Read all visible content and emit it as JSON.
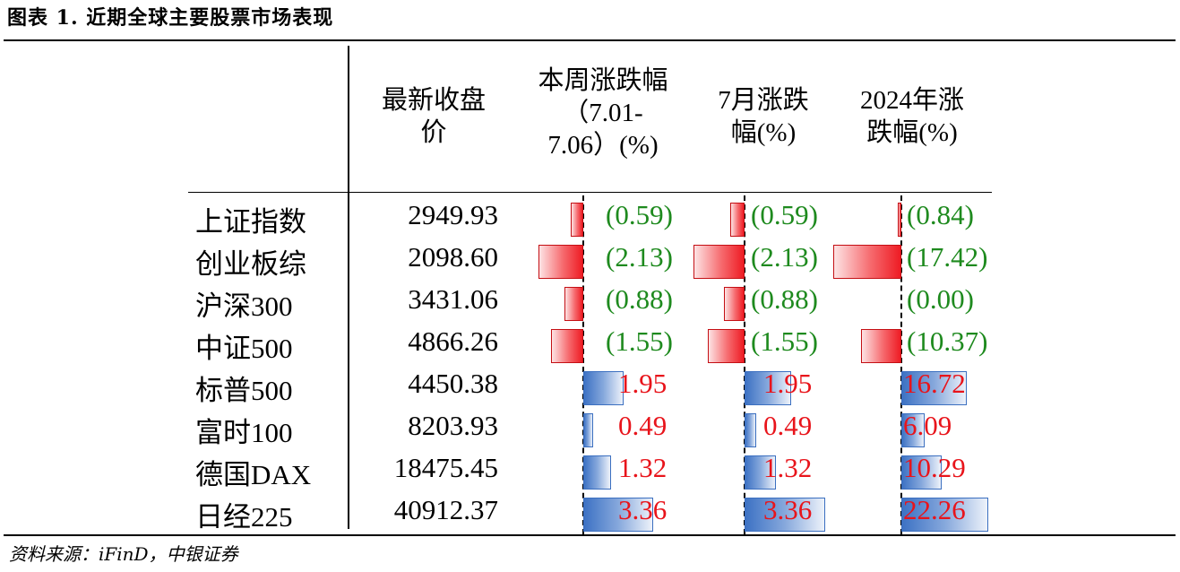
{
  "title": "图表 1. 近期全球主要股票市场表现",
  "headers": {
    "close": "最新收盘\n价",
    "week": "本周涨跌幅\n（7.01-\n7.06）(%)",
    "month": "7月涨跌\n幅(%)",
    "ytd": "2024年涨\n跌幅(%)"
  },
  "rows": [
    {
      "name": "上证指数",
      "close": "2949.93",
      "week": "(0.59)",
      "month": "(0.59)",
      "ytd": "(0.84)"
    },
    {
      "name": "创业板综",
      "close": "2098.60",
      "week": "(2.13)",
      "month": "(2.13)",
      "ytd": "(17.42)"
    },
    {
      "name": "沪深300",
      "close": "3431.06",
      "week": "(0.88)",
      "month": "(0.88)",
      "ytd": "(0.00)"
    },
    {
      "name": "中证500",
      "close": "4866.26",
      "week": "(1.55)",
      "month": "(1.55)",
      "ytd": "(10.37)"
    },
    {
      "name": "标普500",
      "close": "4450.38",
      "week": "1.95",
      "month": "1.95",
      "ytd": "16.72"
    },
    {
      "name": "富时100",
      "close": "8203.93",
      "week": "0.49",
      "month": "0.49",
      "ytd": "6.09"
    },
    {
      "name": "德国DAX",
      "close": "18475.45",
      "week": "1.32",
      "month": "1.32",
      "ytd": "10.29"
    },
    {
      "name": "日经225",
      "close": "40912.37",
      "week": "3.36",
      "month": "3.36",
      "ytd": "22.26"
    }
  ],
  "numeric": {
    "week": [
      -0.59,
      -2.13,
      -0.88,
      -1.55,
      1.95,
      0.49,
      1.32,
      3.36
    ],
    "month": [
      -0.59,
      -2.13,
      -0.88,
      -1.55,
      1.95,
      0.49,
      1.32,
      3.36
    ],
    "ytd": [
      -0.84,
      -17.42,
      0.0,
      -10.37,
      16.72,
      6.09,
      10.29,
      22.26
    ]
  },
  "colors": {
    "negative_bar": "#ee1c24",
    "positive_bar": "#3d72c4",
    "negative_text": "#1e8a1e",
    "positive_text": "#e8141b"
  },
  "source": "资料来源：iFinD，中银证券"
}
